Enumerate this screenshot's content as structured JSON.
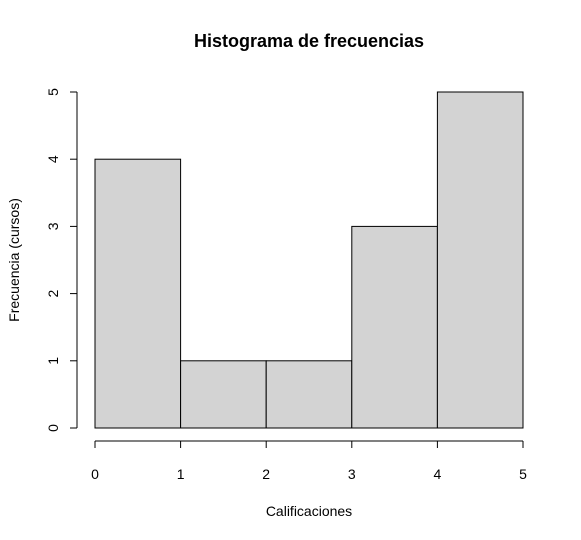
{
  "chart_data": {
    "type": "bar",
    "title": "Histograma de frecuencias",
    "xlabel": "Calificaciones",
    "ylabel": "Frecuencia (cursos)",
    "bins": [
      {
        "from": 0,
        "to": 1,
        "value": 4
      },
      {
        "from": 1,
        "to": 2,
        "value": 1
      },
      {
        "from": 2,
        "to": 3,
        "value": 1
      },
      {
        "from": 3,
        "to": 4,
        "value": 3
      },
      {
        "from": 4,
        "to": 5,
        "value": 5
      }
    ],
    "x_ticks": [
      0,
      1,
      2,
      3,
      4,
      5
    ],
    "x_tick_labels": [
      "0",
      "1",
      "2",
      "3",
      "4",
      "5"
    ],
    "y_ticks": [
      0,
      1,
      2,
      3,
      4,
      5
    ],
    "y_tick_labels": [
      "0",
      "1",
      "2",
      "3",
      "4",
      "5"
    ],
    "xlim": [
      0,
      5
    ],
    "ylim": [
      0,
      5
    ],
    "grid": false,
    "bar_color": "#d3d3d3",
    "edge_color": "#000000"
  }
}
